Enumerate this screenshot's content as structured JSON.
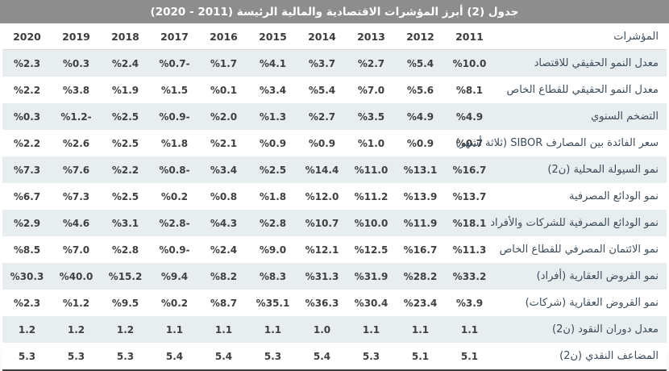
{
  "title": "جدول (2) أبرز المؤشرات الاقتصادية والمالية الرئيسة (2011 - 2020)",
  "colors": {
    "title_bar_bg": "#8d8d8d",
    "title_text": "#ffffff",
    "row_alt_bg": "#e8edf0",
    "row_bg": "#ffffff",
    "value_text": "#3f3f3f",
    "label_text": "#3d4c5a",
    "bottom_rule": "#3f3f3f"
  },
  "table": {
    "indicator_header": "المؤشرات",
    "years_left_to_right": [
      "2020",
      "2019",
      "2018",
      "2017",
      "2016",
      "2015",
      "2014",
      "2013",
      "2012",
      "2011"
    ],
    "rows": [
      {
        "label": "معدل النمو الحقيقي للاقتصاد",
        "values": [
          "%2.3",
          "%0.3",
          "%2.4",
          "%0.7-",
          "%1.7",
          "%4.1",
          "%3.7",
          "%2.7",
          "%5.4",
          "%10.0"
        ]
      },
      {
        "label": "معدل النمو الحقيقي للقطاع الخاص",
        "values": [
          "%2.2",
          "%3.8",
          "%1.9",
          "%1.5",
          "%0.1",
          "%3.4",
          "%5.4",
          "%7.0",
          "%5.6",
          "%8.1"
        ]
      },
      {
        "label": "التضخم السنوي",
        "values": [
          "%0.3",
          "%1.2-",
          "%2.5",
          "%0.9-",
          "%2.0",
          "%1.3",
          "%2.7",
          "%3.5",
          "%4.9",
          "%4.9"
        ]
      },
      {
        "label": "سعر الفائدة بين المصارف SIBOR (ثلاثة أشهر)",
        "values": [
          "%2.2",
          "%2.6",
          "%2.5",
          "%1.8",
          "%2.1",
          "%0.9",
          "%0.9",
          "%1.0",
          "%0.9",
          "%0.7"
        ]
      },
      {
        "label": "نمو السيولة المحلية (ن2)",
        "values": [
          "%7.3",
          "%7.6",
          "%2.2",
          "%0.8-",
          "%3.4",
          "%2.5",
          "%14.4",
          "%11.0",
          "%13.1",
          "%16.7"
        ]
      },
      {
        "label": "نمو الودائع المصرفية",
        "values": [
          "%6.7",
          "%7.3",
          "%2.5",
          "%0.2",
          "%0.8",
          "%1.8",
          "%12.0",
          "%11.2",
          "%13.9",
          "%13.7"
        ]
      },
      {
        "label": "نمو الودائع المصرفية للشركات والأفراد",
        "values": [
          "%2.9",
          "%4.6",
          "%3.1",
          "%2.8-",
          "%4.3",
          "%2.8",
          "%10.7",
          "%10.0",
          "%11.9",
          "%18.1"
        ]
      },
      {
        "label": "نمو الائتمان المصرفي للقطاع الخاص",
        "values": [
          "%8.5",
          "%7.0",
          "%2.8",
          "%0.9-",
          "%2.4",
          "%9.0",
          "%12.1",
          "%12.5",
          "%16.7",
          "%11.3"
        ]
      },
      {
        "label": "نمو القروض العقارية (أفراد)",
        "values": [
          "%30.3",
          "%40.0",
          "%15.2",
          "%9.4",
          "%8.2",
          "%8.3",
          "%31.3",
          "%31.9",
          "%28.2",
          "%33.2"
        ]
      },
      {
        "label": "نمو القروض العقارية (شركات)",
        "values": [
          "%2.3",
          "%1.2",
          "%9.5",
          "%0.2",
          "%8.7",
          "%35.1",
          "%36.3",
          "%30.4",
          "%23.4",
          "%3.9"
        ]
      },
      {
        "label": "معدل دوران النقود (ن2)",
        "values": [
          "1.2",
          "1.2",
          "1.2",
          "1.1",
          "1.1",
          "1.1",
          "1.0",
          "1.1",
          "1.1",
          "1.1"
        ]
      },
      {
        "label": "المضاعف النقدي (ن2)",
        "values": [
          "5.3",
          "5.3",
          "5.3",
          "5.4",
          "5.4",
          "5.3",
          "5.4",
          "5.3",
          "5.1",
          "5.1"
        ]
      }
    ]
  }
}
